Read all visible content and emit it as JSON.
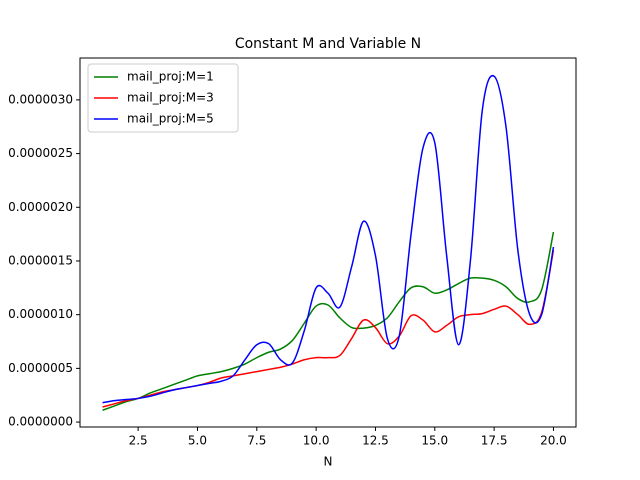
{
  "chart_data": {
    "type": "line",
    "title": "Constant M and Variable N",
    "x_label": "N",
    "x": [
      1,
      1.5,
      2,
      2.5,
      3,
      3.5,
      4,
      4.5,
      5,
      5.5,
      6,
      6.5,
      7,
      7.5,
      8,
      8.5,
      9,
      9.5,
      10,
      10.5,
      11,
      11.5,
      12,
      12.5,
      13,
      13.5,
      14,
      14.5,
      15,
      15.5,
      16,
      16.5,
      17,
      17.5,
      18,
      18.5,
      19,
      19.5,
      20
    ],
    "series": [
      {
        "name": "mail_proj:M=1",
        "color": "#008000",
        "values": [
          1.1e-07,
          1.5e-07,
          1.9e-07,
          2.2e-07,
          2.7e-07,
          3.1e-07,
          3.5e-07,
          3.9e-07,
          4.3e-07,
          4.5e-07,
          4.7e-07,
          5e-07,
          5.4e-07,
          6e-07,
          6.5e-07,
          6.8e-07,
          7.6e-07,
          9.2e-07,
          1.08e-06,
          1.09e-06,
          9.7e-07,
          8.8e-07,
          8.75e-07,
          9e-07,
          9.7e-07,
          1.12e-06,
          1.25e-06,
          1.26e-06,
          1.2e-06,
          1.23e-06,
          1.29e-06,
          1.34e-06,
          1.34e-06,
          1.32e-06,
          1.26e-06,
          1.15e-06,
          1.12e-06,
          1.23e-06,
          1.77e-06
        ]
      },
      {
        "name": "mail_proj:M=3",
        "color": "#ff0000",
        "values": [
          1.4e-07,
          1.7e-07,
          2e-07,
          2.2e-07,
          2.5e-07,
          2.8e-07,
          3e-07,
          3.2e-07,
          3.4e-07,
          3.7e-07,
          4.1e-07,
          4.3e-07,
          4.5e-07,
          4.7e-07,
          4.9e-07,
          5.1e-07,
          5.4e-07,
          5.8e-07,
          6e-07,
          6e-07,
          6.2e-07,
          7.8e-07,
          9.5e-07,
          8.8e-07,
          7.3e-07,
          8e-07,
          9.9e-07,
          9.5e-07,
          8.4e-07,
          9e-07,
          9.8e-07,
          1e-06,
          1.01e-06,
          1.05e-06,
          1.08e-06,
          1e-06,
          9.1e-07,
          1.02e-06,
          1.6e-06
        ]
      },
      {
        "name": "mail_proj:M=5",
        "color": "#0000ff",
        "values": [
          1.8e-07,
          2e-07,
          2.1e-07,
          2.2e-07,
          2.4e-07,
          2.7e-07,
          3e-07,
          3.2e-07,
          3.4e-07,
          3.6e-07,
          3.8e-07,
          4.3e-07,
          5.8e-07,
          7.2e-07,
          7.3e-07,
          5.8e-07,
          5.5e-07,
          8.5e-07,
          1.25e-06,
          1.2e-06,
          1.07e-06,
          1.45e-06,
          1.87e-06,
          1.55e-06,
          7.8e-07,
          8e-07,
          1.75e-06,
          2.55e-06,
          2.6e-06,
          1.55e-06,
          7.2e-07,
          1.5e-06,
          2.9e-06,
          3.22e-06,
          2.75e-06,
          1.6e-06,
          1e-06,
          1e-06,
          1.63e-06
        ]
      }
    ],
    "xlim": [
      0.05,
      20.95
    ],
    "xticks": [
      2.5,
      {
        "value": 5,
        "label": "5.0"
      },
      7.5,
      {
        "value": 10,
        "label": "10.0"
      },
      12.5,
      {
        "value": 15,
        "label": "15.0"
      },
      17.5,
      {
        "value": 20,
        "label": "20.0"
      }
    ],
    "ylim": [
      -4.6e-08,
      3.39e-06
    ],
    "yticks": [
      {
        "value": 0,
        "label": "0.0000000"
      },
      {
        "value": 5e-07,
        "label": "0.0000005"
      },
      {
        "value": 1e-06,
        "label": "0.0000010"
      },
      {
        "value": 1.5e-06,
        "label": "0.0000015"
      },
      {
        "value": 2e-06,
        "label": "0.0000020"
      },
      {
        "value": 2.5e-06,
        "label": "0.0000025"
      },
      {
        "value": 3e-06,
        "label": "0.0000030"
      }
    ],
    "legend": "upper left"
  }
}
